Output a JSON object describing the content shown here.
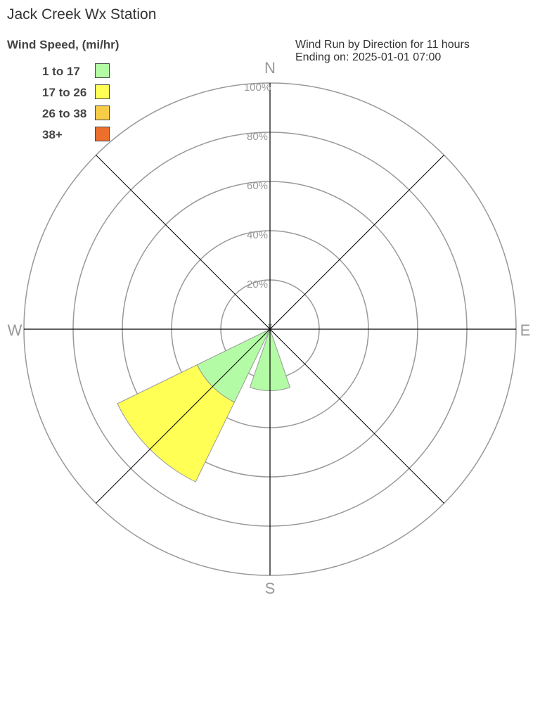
{
  "title": "Jack Creek Wx Station",
  "legend": {
    "title": "Wind Speed, (mi/hr)",
    "items": [
      {
        "label": "1 to 17",
        "color": "#b3fca5"
      },
      {
        "label": "17 to 26",
        "color": "#ffff55"
      },
      {
        "label": "26 to 38",
        "color": "#f7cd47"
      },
      {
        "label": "38+",
        "color": "#ec6f2e"
      }
    ]
  },
  "info": {
    "line1": "Wind Run by Direction for 11 hours",
    "line2": "Ending on: 2025-01-01 07:00"
  },
  "chart_data": {
    "type": "wind-rose",
    "radial_max": 100,
    "radial_ticks": [
      "20%",
      "40%",
      "60%",
      "80%",
      "100%"
    ],
    "compass_labels": [
      "N",
      "E",
      "S",
      "W"
    ],
    "directions": [
      "N",
      "NE",
      "E",
      "SE",
      "S",
      "SW",
      "W",
      "NW"
    ],
    "series": [
      {
        "name": "1 to 17",
        "values": [
          2,
          0,
          0,
          0,
          25,
          33,
          0,
          0
        ]
      },
      {
        "name": "17 to 26",
        "values": [
          0,
          0,
          0,
          0,
          0,
          36,
          0,
          0
        ]
      },
      {
        "name": "26 to 38",
        "values": [
          0,
          0,
          0,
          0,
          0,
          0,
          0,
          0
        ]
      },
      {
        "name": "38+",
        "values": [
          0,
          0,
          0,
          0,
          0,
          0,
          0,
          0
        ]
      }
    ]
  }
}
